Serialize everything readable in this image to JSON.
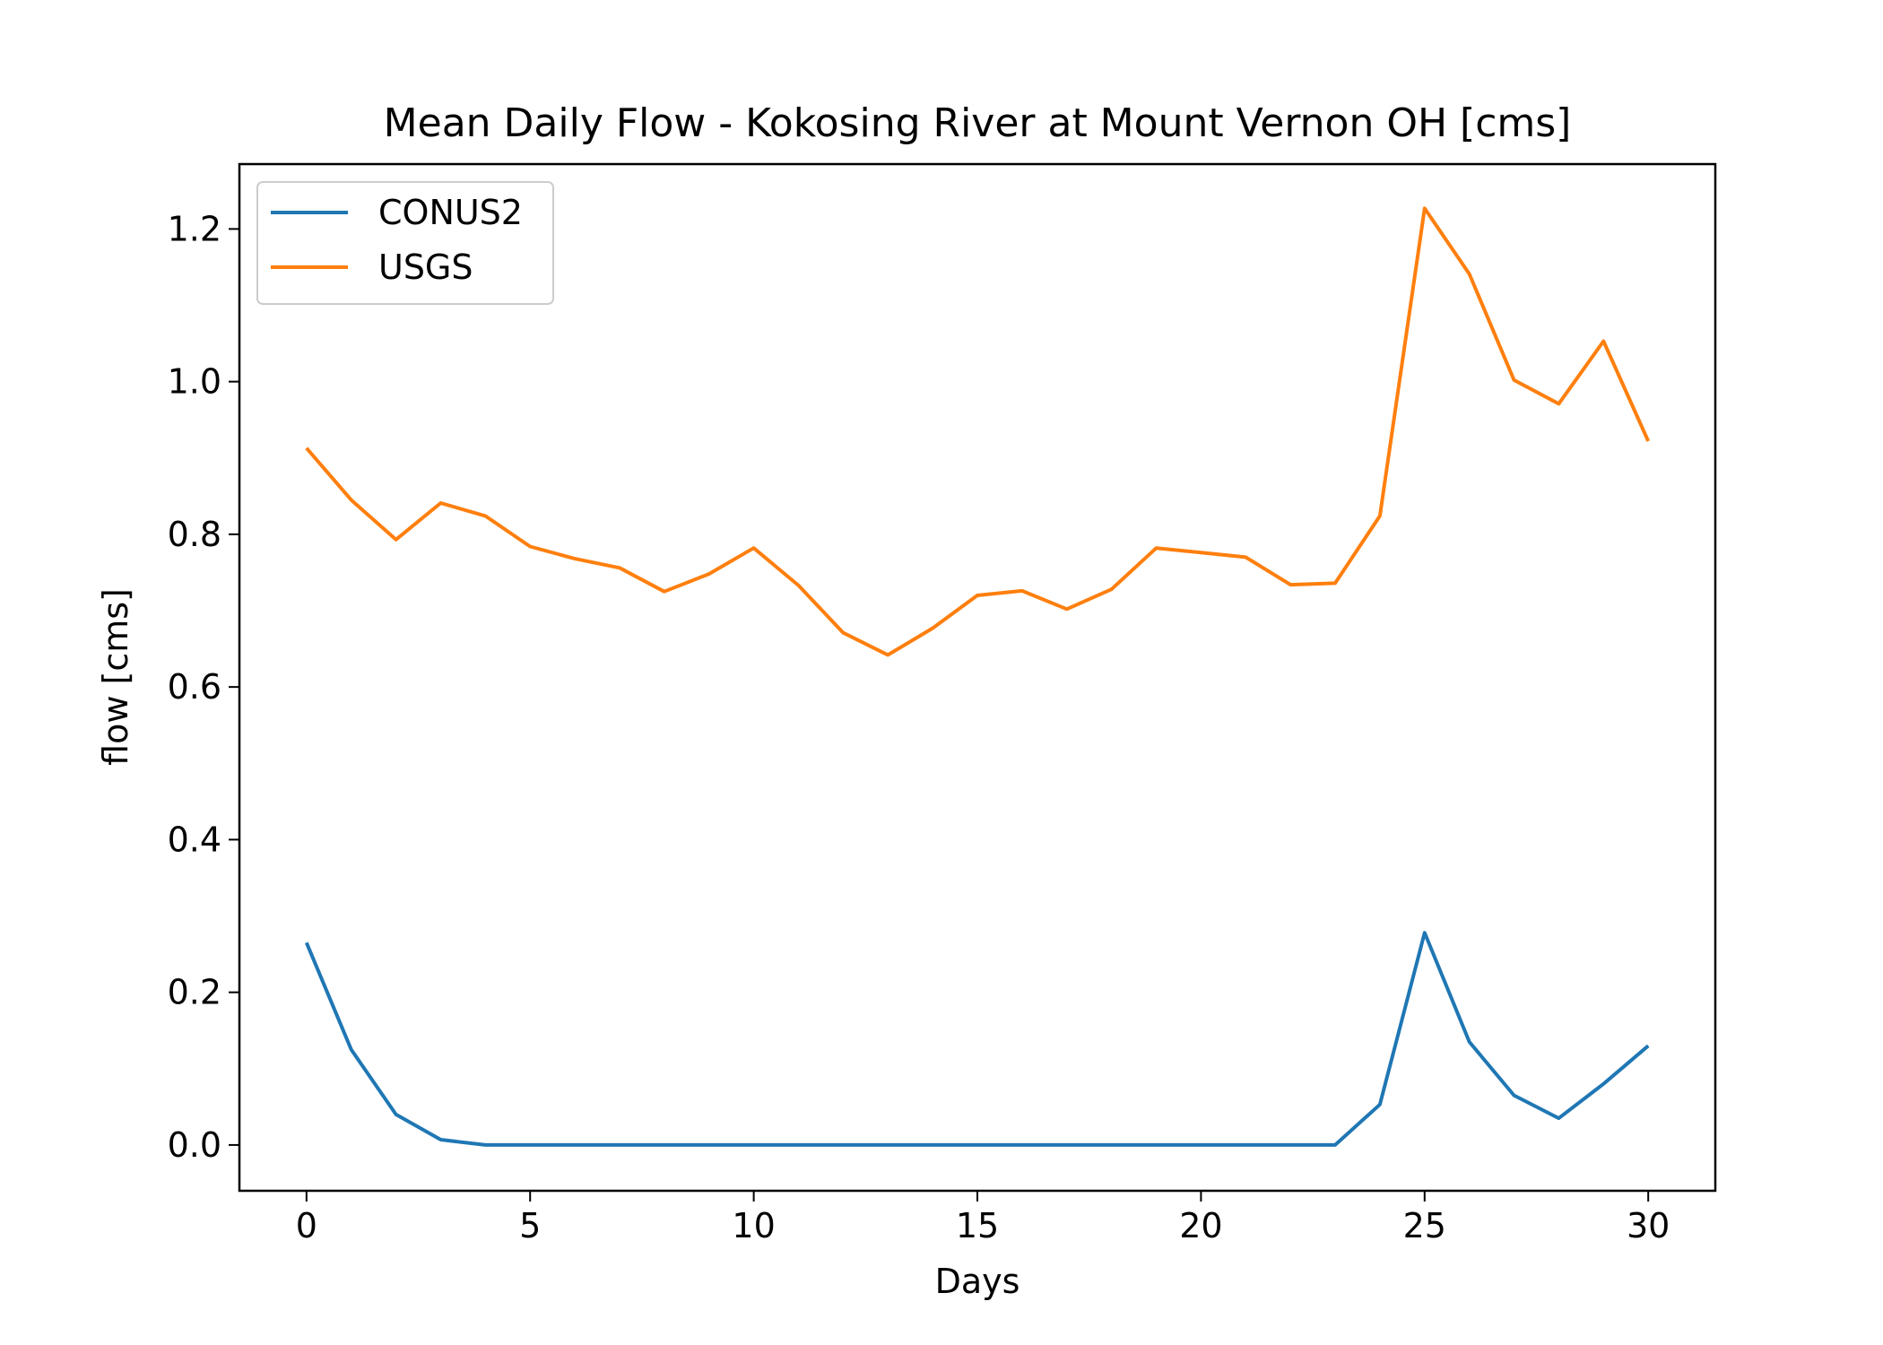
{
  "chart_data": {
    "type": "line",
    "title": "Mean Daily Flow - Kokosing River at Mount Vernon OH [cms]",
    "xlabel": "Days",
    "ylabel": "flow [cms]",
    "xlim": [
      -1.5,
      31.5
    ],
    "ylim": [
      -0.06,
      1.285
    ],
    "xticks": [
      0,
      5,
      10,
      15,
      20,
      25,
      30
    ],
    "xtick_labels": [
      "0",
      "5",
      "10",
      "15",
      "20",
      "25",
      "30"
    ],
    "yticks": [
      0.0,
      0.2,
      0.4,
      0.6,
      0.8,
      1.0,
      1.2
    ],
    "ytick_labels": [
      "0.0",
      "0.2",
      "0.4",
      "0.6",
      "0.8",
      "1.0",
      "1.2"
    ],
    "grid": false,
    "legend_position": "top-left",
    "x": [
      0,
      1,
      2,
      3,
      4,
      5,
      6,
      7,
      8,
      9,
      10,
      11,
      12,
      13,
      14,
      15,
      16,
      17,
      18,
      19,
      20,
      21,
      22,
      23,
      24,
      25,
      26,
      27,
      28,
      29,
      30
    ],
    "series": [
      {
        "name": "CONUS2",
        "color": "#1f77b4",
        "values": [
          0.265,
          0.125,
          0.04,
          0.007,
          0.0,
          0.0,
          0.0,
          0.0,
          0.0,
          0.0,
          0.0,
          0.0,
          0.0,
          0.0,
          0.0,
          0.0,
          0.0,
          0.0,
          0.0,
          0.0,
          0.0,
          0.0,
          0.0,
          0.0,
          0.053,
          0.278,
          0.135,
          0.065,
          0.035,
          0.08,
          0.13
        ]
      },
      {
        "name": "USGS",
        "color": "#ff7f0e",
        "values": [
          0.913,
          0.845,
          0.793,
          0.841,
          0.824,
          0.784,
          0.768,
          0.756,
          0.725,
          0.748,
          0.782,
          0.733,
          0.671,
          0.642,
          0.677,
          0.72,
          0.726,
          0.702,
          0.728,
          0.782,
          0.776,
          0.77,
          0.734,
          0.736,
          0.824,
          1.227,
          1.141,
          1.002,
          0.971,
          1.053,
          0.922
        ]
      }
    ]
  }
}
